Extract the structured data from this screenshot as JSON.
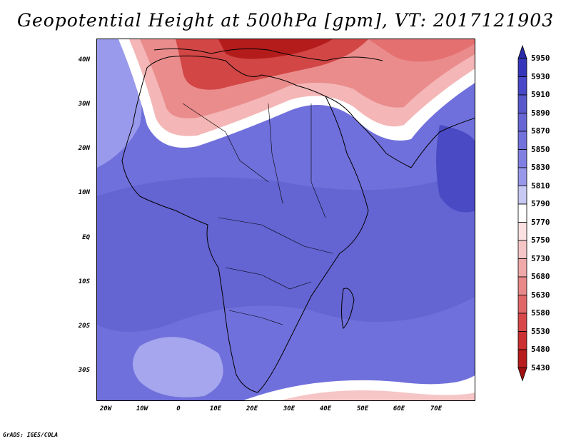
{
  "title": "Geopotential Height at 500hPa [gpm], VT: 2017121903",
  "axes": {
    "y_ticks": [
      "40N",
      "30N",
      "20N",
      "10N",
      "EQ",
      "10S",
      "20S",
      "30S"
    ],
    "x_ticks": [
      "20W",
      "10W",
      "0",
      "10E",
      "20E",
      "30E",
      "40E",
      "50E",
      "60E",
      "70E"
    ]
  },
  "colorbar": {
    "levels": [
      "5950",
      "5930",
      "5910",
      "5890",
      "5870",
      "5850",
      "5830",
      "5810",
      "5790",
      "5770",
      "5750",
      "5730",
      "5680",
      "5630",
      "5580",
      "5530",
      "5480",
      "5430"
    ],
    "colors": [
      "#2a2aa8",
      "#3636bc",
      "#4848c8",
      "#5858cc",
      "#6666d4",
      "#7272dc",
      "#8080e2",
      "#9898ea",
      "#c8c8f4",
      "#ffffff",
      "#fbe1e1",
      "#f6c6c6",
      "#f0a8a8",
      "#e88888",
      "#e06868",
      "#d84848",
      "#cc3030",
      "#b81c1c",
      "#a01010"
    ]
  },
  "credit": "GrADS: IGES/COLA"
}
